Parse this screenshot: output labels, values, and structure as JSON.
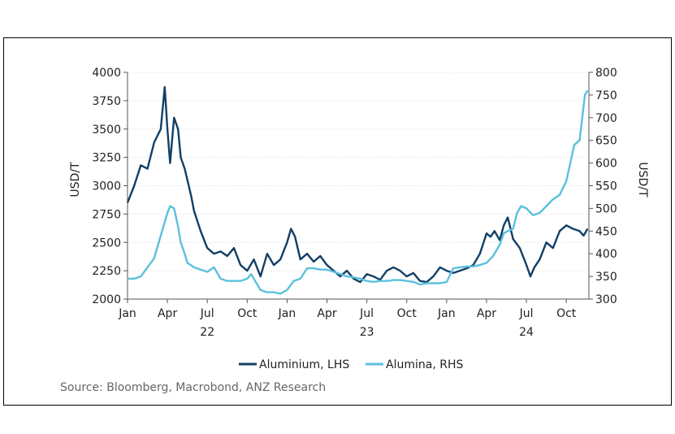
{
  "chart_data": {
    "type": "line",
    "title": "",
    "ylabel_left": "USD/T",
    "ylabel_right": "USD/T",
    "ylim_left": [
      2000,
      4000
    ],
    "ylim_right": [
      300,
      800
    ],
    "yticks_left": [
      "2000",
      "2250",
      "2500",
      "2750",
      "3000",
      "3250",
      "3500",
      "3750",
      "4000"
    ],
    "yticks_right": [
      "300",
      "350",
      "400",
      "450",
      "500",
      "550",
      "600",
      "650",
      "700",
      "750",
      "800"
    ],
    "xlim": [
      0,
      34.7
    ],
    "month_ticks": [
      {
        "label": "Jan",
        "m": 0
      },
      {
        "label": "Apr",
        "m": 3
      },
      {
        "label": "Jul",
        "m": 6
      },
      {
        "label": "Oct",
        "m": 9
      },
      {
        "label": "Jan",
        "m": 12
      },
      {
        "label": "Apr",
        "m": 15
      },
      {
        "label": "Jul",
        "m": 18
      },
      {
        "label": "Oct",
        "m": 21
      },
      {
        "label": "Jan",
        "m": 24
      },
      {
        "label": "Apr",
        "m": 27
      },
      {
        "label": "Jul",
        "m": 30
      },
      {
        "label": "Oct",
        "m": 33
      }
    ],
    "year_labels": [
      {
        "label": "22",
        "m": 6
      },
      {
        "label": "23",
        "m": 18
      },
      {
        "label": "24",
        "m": 30
      }
    ],
    "series": [
      {
        "name": "Aluminium, LHS",
        "axis": "left",
        "color": "#123f66",
        "x": [
          0,
          0.5,
          1,
          1.5,
          2,
          2.5,
          2.8,
          3,
          3.2,
          3.5,
          3.8,
          4,
          4.3,
          4.5,
          4.8,
          5,
          5.5,
          6,
          6.5,
          7,
          7.5,
          8,
          8.5,
          9,
          9.5,
          10,
          10.5,
          11,
          11.5,
          12,
          12.3,
          12.6,
          13,
          13.5,
          14,
          14.5,
          15,
          15.5,
          16,
          16.5,
          17,
          17.5,
          18,
          18.5,
          19,
          19.5,
          20,
          20.5,
          21,
          21.5,
          22,
          22.5,
          23,
          23.5,
          24,
          24.5,
          25,
          25.5,
          26,
          26.5,
          27,
          27.3,
          27.6,
          28,
          28.3,
          28.6,
          29,
          29.5,
          30,
          30.3,
          30.6,
          31,
          31.5,
          32,
          32.5,
          33,
          33.5,
          34,
          34.3,
          34.6
        ],
        "values": [
          2850,
          3000,
          3180,
          3150,
          3380,
          3500,
          3870,
          3500,
          3200,
          3600,
          3500,
          3250,
          3150,
          3050,
          2900,
          2780,
          2600,
          2450,
          2400,
          2420,
          2380,
          2450,
          2300,
          2250,
          2350,
          2200,
          2400,
          2300,
          2350,
          2500,
          2620,
          2550,
          2350,
          2400,
          2330,
          2380,
          2300,
          2250,
          2200,
          2250,
          2180,
          2150,
          2220,
          2200,
          2170,
          2250,
          2280,
          2250,
          2200,
          2230,
          2160,
          2150,
          2200,
          2280,
          2250,
          2230,
          2250,
          2270,
          2300,
          2400,
          2580,
          2550,
          2600,
          2520,
          2650,
          2720,
          2530,
          2450,
          2300,
          2200,
          2280,
          2350,
          2500,
          2450,
          2600,
          2650,
          2620,
          2600,
          2560,
          2620
        ]
      },
      {
        "name": "Alumina, RHS",
        "axis": "right",
        "color": "#5bc0de",
        "x": [
          0,
          0.5,
          1,
          1.5,
          2,
          2.5,
          3,
          3.2,
          3.5,
          3.8,
          4,
          4.3,
          4.5,
          5,
          5.5,
          6,
          6.5,
          7,
          7.5,
          8,
          8.5,
          9,
          9.3,
          9.6,
          10,
          10.5,
          11,
          11.5,
          12,
          12.5,
          13,
          13.5,
          14,
          14.5,
          15,
          15.5,
          16,
          16.5,
          17,
          17.5,
          18,
          18.5,
          19,
          19.5,
          20,
          20.5,
          21,
          21.5,
          22,
          22.5,
          23,
          23.5,
          24,
          24.5,
          25,
          25.5,
          26,
          26.5,
          27,
          27.5,
          28,
          28.3,
          28.6,
          29,
          29.3,
          29.6,
          30,
          30.5,
          31,
          31.5,
          32,
          32.5,
          33,
          33.3,
          33.6,
          34,
          34.2,
          34.4,
          34.6
        ],
        "values": [
          345,
          345,
          350,
          370,
          390,
          440,
          490,
          505,
          500,
          460,
          425,
          400,
          380,
          370,
          365,
          360,
          370,
          345,
          340,
          340,
          340,
          345,
          355,
          340,
          320,
          315,
          315,
          312,
          320,
          340,
          345,
          368,
          368,
          365,
          365,
          360,
          355,
          350,
          348,
          345,
          340,
          338,
          340,
          340,
          342,
          342,
          340,
          338,
          332,
          335,
          335,
          335,
          338,
          368,
          370,
          372,
          372,
          375,
          380,
          395,
          420,
          445,
          450,
          455,
          490,
          505,
          500,
          485,
          490,
          505,
          520,
          530,
          560,
          600,
          640,
          650,
          700,
          750,
          760
        ]
      }
    ],
    "legend_position": "bottom",
    "source": "Source: Bloomberg, Macrobond, ANZ Research"
  }
}
